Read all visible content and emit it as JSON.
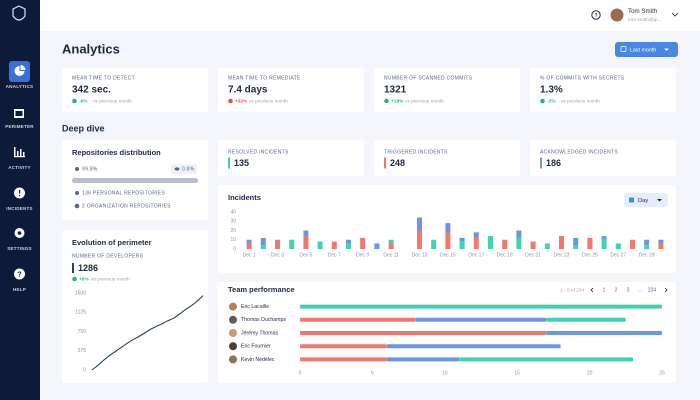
{
  "sidebar": {
    "items": [
      "ANALYTICS",
      "PERIMETER",
      "ACTIVITY",
      "INCIDENTS",
      "SETTINGS",
      "HELP"
    ]
  },
  "header": {
    "user_name": "Tom Smith",
    "user_email": "tom.smith@gi...",
    "title": "Analytics",
    "period_button": "Last month"
  },
  "kpis": [
    {
      "label": "MEAN TIME TO DETECT",
      "value": "342 sec.",
      "change": "-6%",
      "change_color": "#2bb673",
      "change_note": "vs previous month"
    },
    {
      "label": "MEAN TIME TO REMEDIATE",
      "value": "7.4 days",
      "change": "+32%",
      "change_color": "#e5534b",
      "change_note": "vs previous month"
    },
    {
      "label": "NUMBER OF SCANNED COMMITS",
      "value": "1321",
      "change": "+18%",
      "change_color": "#2bb673",
      "change_note": "vs previous month"
    },
    {
      "label": "% OF COMMITS WITH SECRETS",
      "value": "1.3%",
      "change": "-2%",
      "change_color": "#2bb673",
      "change_note": "vs previous month"
    }
  ],
  "section_title": "Deep dive",
  "repositories": {
    "title": "Repositories distribution",
    "public_share": "99.8%",
    "private_share": "0.8%",
    "personal": "136 PERSONAL REPOSITORIES",
    "organization": "2 ORGANIZATION REPOSITORIES"
  },
  "incident_totals": [
    {
      "label": "RESOLVED INCIDENTS",
      "value": "135",
      "color": "#3fd4b0"
    },
    {
      "label": "TRIGGERED INCIDENTS",
      "value": "248",
      "color": "#f2786d"
    },
    {
      "label": "ACKNOWLEDGED INCIDENTS",
      "value": "186",
      "color": "#6b95e8"
    }
  ],
  "perimeter": {
    "title": "Evolution of perimeter",
    "metric_label": "NUMBER OF DEVELOPERS",
    "value": "1286",
    "change": "+6%",
    "change_color": "#2bb673",
    "change_note": "vs previous month",
    "chart_data": {
      "type": "line",
      "color": "#2c3e66",
      "values": [
        0,
        90,
        190,
        280,
        360,
        440,
        520,
        590,
        650,
        720,
        790,
        850,
        900,
        960,
        1010,
        1090,
        1180,
        1250,
        1340,
        1450
      ],
      "ylim": [
        0,
        1500
      ],
      "yticks": [
        0,
        375,
        750,
        1125,
        1500
      ]
    }
  },
  "incidents": {
    "title": "Incidents",
    "granularity": "Day",
    "chart_data": {
      "type": "stacked-bar",
      "categories": [
        "Dec 1",
        null,
        "Dec 3",
        null,
        "Dec 5",
        null,
        "Dec 7",
        null,
        "Dec 9",
        null,
        "Dec 11",
        null,
        "Dec 13",
        null,
        "Dec 15",
        null,
        "Dec 17",
        null,
        "Dec 19",
        null,
        "Dec 21",
        null,
        "Dec 23",
        null,
        "Dec 25",
        null,
        "Dec 27",
        null,
        "Dec 29",
        null
      ],
      "series": [
        {
          "color": "#f2786d",
          "values": [
            6,
            0,
            10,
            0,
            14,
            0,
            8,
            0,
            12,
            0,
            6,
            0,
            20,
            0,
            18,
            0,
            12,
            0,
            10,
            0,
            8,
            0,
            14,
            0,
            12,
            0,
            0,
            10,
            0,
            6
          ]
        },
        {
          "color": "#3fd4b0",
          "values": [
            0,
            4,
            0,
            10,
            0,
            8,
            0,
            6,
            0,
            0,
            4,
            0,
            0,
            10,
            0,
            8,
            0,
            14,
            0,
            12,
            0,
            6,
            0,
            4,
            0,
            10,
            6,
            0,
            4,
            0
          ]
        },
        {
          "color": "#6b95e8",
          "values": [
            4,
            8,
            0,
            0,
            6,
            0,
            0,
            4,
            0,
            6,
            0,
            0,
            14,
            0,
            10,
            4,
            6,
            0,
            0,
            8,
            0,
            0,
            0,
            8,
            0,
            4,
            0,
            0,
            6,
            4
          ]
        }
      ],
      "ylim": [
        0,
        40
      ],
      "yticks": [
        0,
        10,
        20,
        30,
        40
      ],
      "grid": false
    }
  },
  "team": {
    "title": "Team performance",
    "pager": {
      "range": "1 - 5 of 234",
      "pages": [
        "1",
        "2",
        "3",
        "...",
        "234"
      ]
    },
    "chart_data": {
      "type": "horizontal-stacked-bar",
      "categories": [
        "Eric Lacaille",
        "Thomas Duchamps",
        "Jérémy Thomas",
        "Eric Fournier",
        "Kevin Nédélec"
      ],
      "series": [
        {
          "color": "#f2786d",
          "values": [
            0,
            8,
            17,
            6,
            6
          ]
        },
        {
          "color": "#6b95e8",
          "values": [
            0,
            9,
            8,
            12,
            5
          ]
        },
        {
          "color": "#3fd4b0",
          "values": [
            25,
            5.5,
            0,
            0,
            12
          ]
        }
      ],
      "xlim": [
        0,
        25
      ],
      "xticks": [
        0,
        5,
        10,
        15,
        20,
        25
      ],
      "grid": false
    }
  }
}
